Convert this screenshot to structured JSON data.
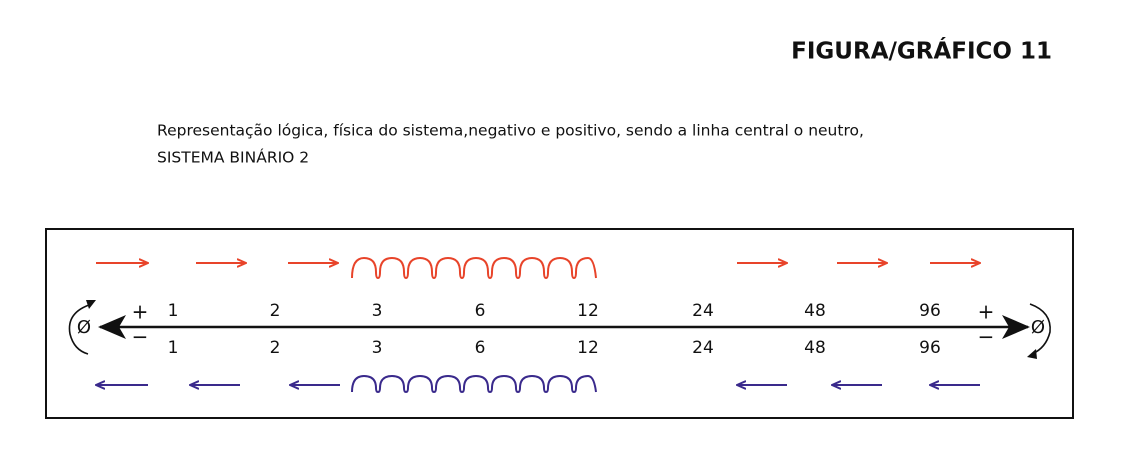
{
  "header": {
    "title": "FIGURA/GRÁFICO 11"
  },
  "description": {
    "lines": [
      "Representação lógica, física do sistema,negativo e positivo, sendo a linha central o neutro,",
      "SISTEMA BINÁRIO 2"
    ]
  },
  "scale": {
    "top": [
      1,
      2,
      3,
      6,
      12,
      24,
      48,
      96
    ],
    "bottom": [
      1,
      2,
      3,
      6,
      12,
      24,
      48,
      96
    ]
  },
  "left_end": {
    "plus": "+",
    "minus": "−",
    "symbol": "Ø"
  },
  "right_end": {
    "plus": "+",
    "minus": "−",
    "symbol": "Ø"
  }
}
